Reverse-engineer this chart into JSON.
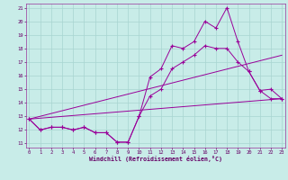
{
  "xlabel": "Windchill (Refroidissement éolien,°C)",
  "bg_color": "#c8ece8",
  "grid_color": "#a8d4d0",
  "line_color": "#990099",
  "xlim": [
    -0.3,
    23.3
  ],
  "ylim": [
    10.7,
    21.3
  ],
  "xticks": [
    0,
    1,
    2,
    3,
    4,
    5,
    6,
    7,
    8,
    9,
    10,
    11,
    12,
    13,
    14,
    15,
    16,
    17,
    18,
    19,
    20,
    21,
    22,
    23
  ],
  "yticks": [
    11,
    12,
    13,
    14,
    15,
    16,
    17,
    18,
    19,
    20,
    21
  ],
  "line1_x": [
    0,
    1,
    2,
    3,
    4,
    5,
    6,
    7,
    8,
    9,
    10,
    11,
    12,
    13,
    14,
    15,
    16,
    17,
    18,
    19,
    20,
    21,
    22,
    23
  ],
  "line1_y": [
    12.8,
    12.0,
    12.2,
    12.2,
    12.0,
    12.2,
    11.8,
    11.8,
    11.1,
    11.1,
    13.0,
    15.9,
    16.5,
    18.2,
    18.0,
    18.5,
    20.0,
    19.5,
    21.0,
    18.5,
    16.3,
    14.9,
    15.0,
    14.3
  ],
  "line2_x": [
    0,
    1,
    2,
    3,
    4,
    5,
    6,
    7,
    8,
    9,
    10,
    11,
    12,
    13,
    14,
    15,
    16,
    17,
    18,
    19,
    20,
    21,
    22,
    23
  ],
  "line2_y": [
    12.8,
    12.0,
    12.2,
    12.2,
    12.0,
    12.2,
    11.8,
    11.8,
    11.1,
    11.1,
    13.0,
    14.5,
    15.0,
    16.5,
    17.0,
    17.5,
    18.2,
    18.0,
    18.0,
    17.0,
    16.3,
    14.9,
    14.3,
    14.3
  ],
  "line3_x": [
    0,
    23
  ],
  "line3_y": [
    12.8,
    17.5
  ],
  "line4_x": [
    0,
    23
  ],
  "line4_y": [
    12.8,
    14.3
  ]
}
